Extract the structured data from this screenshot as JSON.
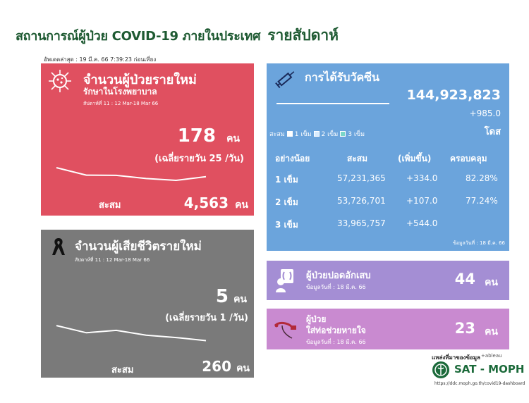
{
  "header": {
    "title": "สถานการณ์ผู้ป่วย COVID-19 ภายในประเทศ",
    "subtitle": "รายสัปดาห์",
    "updated": "อัพเดตล่าสุด : 19 มี.ค. 66 7:39:23 ก่อนเที่ยง"
  },
  "new_cases": {
    "title": "จำนวนผู้ป่วยรายใหม่",
    "subtitle": "รักษาในโรงพยาบาล",
    "week": "สัปดาห์ที่ 11 : 12 Mar-18 Mar 66",
    "value": "178",
    "unit": "คน",
    "avg": "(เฉลี่ยรายวัน 25 /วัน)",
    "total_label": "สะสม",
    "total": "4,563",
    "total_unit": "คน",
    "trend": [
      0.78,
      0.45,
      0.44,
      0.3,
      0.22,
      0.38
    ],
    "icon": "virus-icon",
    "color": "#e05060"
  },
  "deaths": {
    "title": "จำนวนผู้เสียชีวิตรายใหม่",
    "week": "สัปดาห์ที่ 11 : 12 Mar-18 Mar 66",
    "value": "5",
    "unit": "คน",
    "avg": "(เฉลี่ยรายวัน 1 /วัน)",
    "total_label": "สะสม",
    "total": "260",
    "total_unit": "คน",
    "trend": [
      0.85,
      0.55,
      0.65,
      0.45,
      0.35,
      0.22
    ],
    "icon": "black-ribbon-icon",
    "color": "#7a7a7a"
  },
  "vaccine": {
    "title": "การได้รับวัคซีน",
    "total": "144,923,823",
    "increase": "+985.0",
    "unit": "โดส",
    "legend_prefix": "สะสม",
    "legend": [
      "1 เข็ม",
      "2 เข็ม",
      "3 เข็ม"
    ],
    "columns": [
      "อย่างน้อย",
      "สะสม",
      "(เพิ่มขึ้น)",
      "ครอบคลุม"
    ],
    "rows": [
      {
        "dose": "1 เข็ม",
        "total": "57,231,365",
        "inc": "+334.0",
        "coverage": "82.28%"
      },
      {
        "dose": "2 เข็ม",
        "total": "53,726,701",
        "inc": "+107.0",
        "coverage": "77.24%"
      },
      {
        "dose": "3 เข็ม",
        "total": "33,965,757",
        "inc": "+544.0",
        "coverage": ""
      }
    ],
    "date": "ข้อมูลวันที่ : 18 มี.ค. 66",
    "icon": "syringe-icon",
    "color": "#6ba4dc"
  },
  "pneumonia": {
    "title": "ผู้ป่วยปอดอักเสบ",
    "date": "ข้อมูลวันที่ : 18 มี.ค. 66",
    "value": "44",
    "unit": "คน",
    "icon": "lung-xray-icon",
    "color": "#a48ed4"
  },
  "ventilator": {
    "title_line1": "ผู้ป่วย",
    "title_line2": "ใส่ท่อช่วยหายใจ",
    "date": "ข้อมูลวันที่ : 18 มี.ค. 66",
    "value": "23",
    "unit": "คน",
    "icon": "ventilator-tube-icon",
    "color": "#c98ad0"
  },
  "footer": {
    "source_label": "แหล่งที่มาของข้อมูล",
    "tableau": "+ableau",
    "org": "SAT - MOPH",
    "url": "https://ddc.moph.go.th/covid19-dashboard"
  }
}
